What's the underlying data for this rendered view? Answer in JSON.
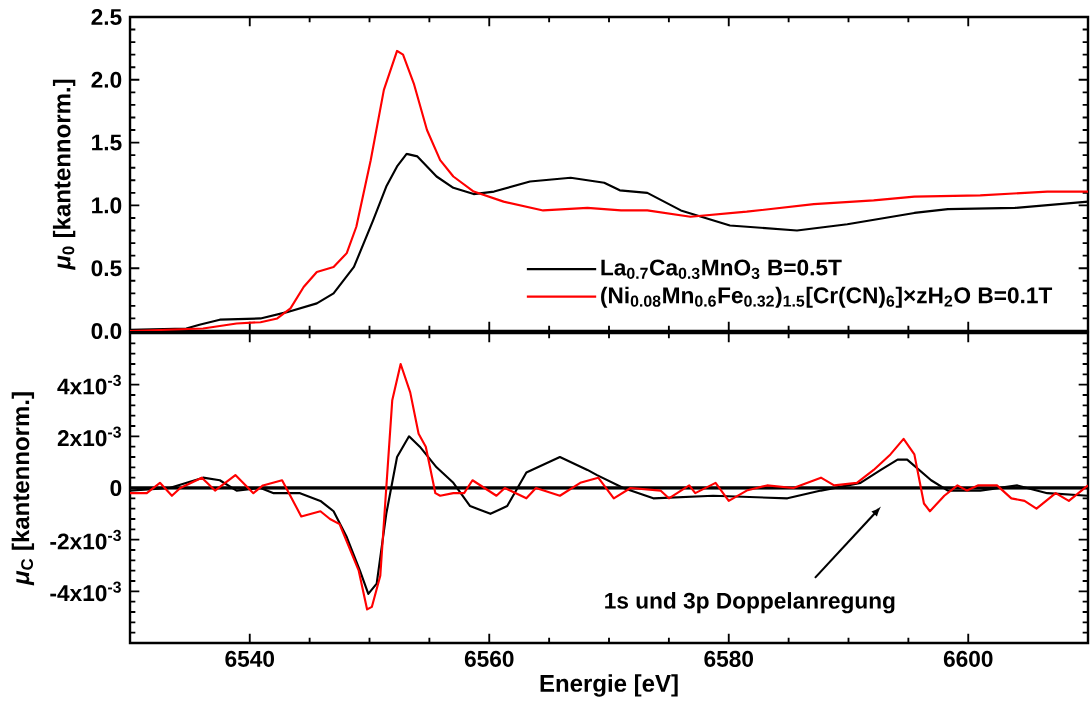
{
  "chart_data": [
    {
      "type": "line",
      "ylabel": "*μ*$_{0}$ [kantennorm.]",
      "xlim": [
        6530,
        6610
      ],
      "xticks": [
        6540,
        6560,
        6580,
        6600
      ],
      "ylim": [
        0,
        2.5
      ],
      "yticks": [
        {
          "value": 0,
          "label": "0.0"
        },
        0.5,
        {
          "value": 1,
          "label": "1.0"
        },
        1.5,
        {
          "value": 2,
          "label": "2.0"
        },
        2.5
      ],
      "tick_labels": "y",
      "legend": "bottom right",
      "line_style": "solid",
      "series": [
        {
          "name": "La$_{0.7}$Ca$_{0.3}$MnO$_{3}$ B=0.5T",
          "color": "#000000",
          "x": [
            6530,
            6534.7,
            6535.8,
            6537.5,
            6540.9,
            6543.1,
            6545.6,
            6547,
            6548.7,
            6550.3,
            6551.4,
            6552.3,
            6553.1,
            6554,
            6555.6,
            6557,
            6558.7,
            6560.4,
            6563.4,
            6566.8,
            6569.6,
            6570.9,
            6573.2,
            6576,
            6580.1,
            6585.7,
            6589.9,
            6595.5,
            6598.3,
            6603.9,
            6610
          ],
          "values": [
            0.01,
            0.02,
            0.05,
            0.09,
            0.1,
            0.15,
            0.22,
            0.3,
            0.51,
            0.88,
            1.15,
            1.31,
            1.41,
            1.39,
            1.23,
            1.14,
            1.09,
            1.11,
            1.19,
            1.22,
            1.18,
            1.12,
            1.1,
            0.96,
            0.84,
            0.8,
            0.85,
            0.94,
            0.97,
            0.98,
            1.03
          ]
        },
        {
          "name": "(Ni$_{0.08}$Mn$_{0.6}$Fe$_{0.32}$)$_{1.5}$[Cr(CN)$_{6}$]×zH$_{2}$O B=0.1T",
          "color": "#ff0000",
          "x": [
            6530,
            6536.1,
            6538.9,
            6540.9,
            6542.3,
            6543.4,
            6544.5,
            6545.6,
            6547,
            6548.1,
            6548.9,
            6550.1,
            6551.2,
            6552.3,
            6552.8,
            6553.7,
            6554.8,
            6555.9,
            6557,
            6558.7,
            6561.2,
            6564.5,
            6568.2,
            6571,
            6573.2,
            6576.8,
            6581.5,
            6587.1,
            6592.1,
            6595.5,
            6601,
            6606.6,
            6610
          ],
          "values": [
            0.0,
            0.02,
            0.06,
            0.07,
            0.1,
            0.18,
            0.35,
            0.47,
            0.51,
            0.62,
            0.83,
            1.36,
            1.92,
            2.23,
            2.2,
            1.97,
            1.6,
            1.36,
            1.23,
            1.11,
            1.03,
            0.96,
            0.98,
            0.96,
            0.96,
            0.91,
            0.95,
            1.01,
            1.04,
            1.07,
            1.08,
            1.11,
            1.11
          ]
        }
      ]
    },
    {
      "type": "line",
      "xlabel": "Energie [eV]",
      "ylabel": "*μ*$_{C}$ [kantennorm.]",
      "xlim": [
        6530,
        6610
      ],
      "xticks": [
        6540,
        6560,
        6580,
        6600
      ],
      "ylim": [
        -0.006,
        0.006
      ],
      "yticks": [
        {
          "value": -0.006,
          "label": null
        },
        {
          "value": -0.004,
          "label": "-4x10$^{-3}$"
        },
        {
          "value": -0.002,
          "label": "-2x10$^{-3}$"
        },
        0,
        {
          "value": 0.002,
          "label": "2x10$^{-3}$"
        },
        {
          "value": 0.004,
          "label": "4x10$^{-3}$"
        },
        {
          "value": 0.006,
          "label": null
        }
      ],
      "line_style": "solid",
      "ref_lines": [
        {
          "axis": "y",
          "value": 0,
          "color": "#000000"
        }
      ],
      "annotations": [
        "1s und 3p Doppelanregung"
      ],
      "series": [
        {
          "color": "#000000",
          "x": [
            6530,
            6533.3,
            6536.1,
            6537.5,
            6538.9,
            6540.9,
            6542,
            6544.2,
            6545.9,
            6547,
            6548.1,
            6549.2,
            6549.9,
            6550.6,
            6551.4,
            6552.3,
            6553.3,
            6554.2,
            6555.6,
            6557,
            6558.4,
            6560.1,
            6561.5,
            6563.1,
            6565.9,
            6568.2,
            6569,
            6571.2,
            6573.7,
            6578.7,
            6584.9,
            6587.7,
            6591,
            6592.7,
            6594.1,
            6594.9,
            6596.9,
            6598.3,
            6601,
            6604.1,
            6606.6,
            6610
          ],
          "values": [
            -0.0001,
            0.0,
            0.0004,
            0.0003,
            -0.0001,
            0.0,
            -0.0002,
            -0.0002,
            -0.0005,
            -0.0009,
            -0.0019,
            -0.0032,
            -0.0041,
            -0.0037,
            -0.001,
            0.0012,
            0.002,
            0.0016,
            0.0008,
            0.0002,
            -0.0007,
            -0.001,
            -0.0007,
            0.0006,
            0.0012,
            0.0007,
            0.0005,
            0.0,
            -0.0004,
            -0.0003,
            -0.0004,
            -0.0001,
            0.0002,
            0.0007,
            0.0011,
            0.0011,
            0.0003,
            -0.0001,
            -0.0001,
            0.0001,
            -0.0002,
            -0.0003
          ]
        },
        {
          "color": "#ff0000",
          "x": [
            6530,
            6531.4,
            6532.5,
            6533.5,
            6534.2,
            6536,
            6537.1,
            6538.8,
            6540.3,
            6541.1,
            6542.7,
            6544.3,
            6545.9,
            6546.7,
            6547.5,
            6549.1,
            6549.8,
            6550.2,
            6550.9,
            6551.9,
            6552.6,
            6553.4,
            6554.1,
            6554.7,
            6555.5,
            6555.9,
            6557,
            6557.9,
            6558.6,
            6560.6,
            6561.3,
            6563.1,
            6563.9,
            6565.9,
            6567.6,
            6569.1,
            6570.4,
            6571.8,
            6574.3,
            6575,
            6576.7,
            6577.2,
            6578.9,
            6580,
            6581.5,
            6583.2,
            6585.4,
            6587.7,
            6588.8,
            6590.7,
            6592.1,
            6593.5,
            6594.6,
            6595.5,
            6596.3,
            6596.8,
            6598,
            6599.1,
            6599.9,
            6600.8,
            6602.4,
            6603.6,
            6604.7,
            6605.7,
            6607.3,
            6608.4,
            6610
          ],
          "values": [
            -0.0002,
            -0.0002,
            0.0002,
            -0.0003,
            0.0,
            0.0004,
            -0.0001,
            0.0005,
            -0.0002,
            0.0001,
            0.0003,
            -0.0011,
            -0.0009,
            -0.0012,
            -0.0014,
            -0.0032,
            -0.0047,
            -0.0046,
            -0.0034,
            0.0034,
            0.0048,
            0.0037,
            0.0021,
            0.0016,
            -0.0002,
            -0.0003,
            -0.0002,
            -0.0002,
            0.0003,
            -0.0003,
            0.0,
            -0.0004,
            0.0,
            -0.0003,
            0.0002,
            0.0004,
            -0.0004,
            0.0,
            -0.0001,
            -0.0004,
            0.0001,
            -0.0002,
            0.0002,
            -0.0005,
            -0.0001,
            0.0001,
            0.0,
            0.0004,
            0.0001,
            0.0002,
            0.0007,
            0.0013,
            0.0019,
            0.0013,
            -0.0006,
            -0.0009,
            -0.0003,
            0.0001,
            -0.0001,
            0.0001,
            0.0001,
            -0.0004,
            -0.0005,
            -0.0008,
            -0.0002,
            -0.0005,
            0.0001
          ]
        }
      ]
    }
  ]
}
